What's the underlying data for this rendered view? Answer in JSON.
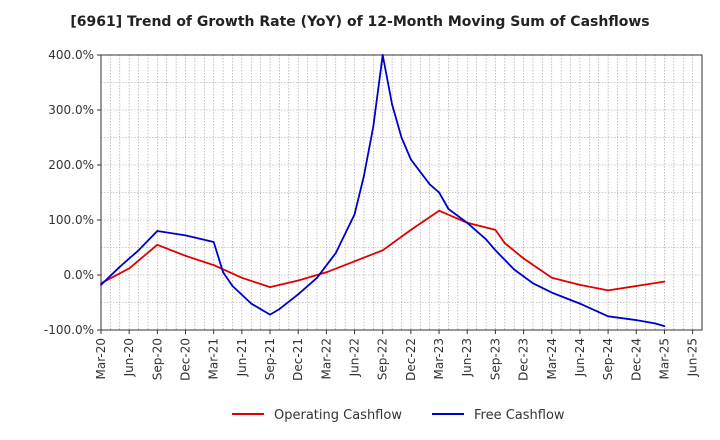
{
  "chart_data": {
    "type": "line",
    "title": "[6961]  Trend of Growth Rate (YoY) of 12-Month Moving Sum of Cashflows",
    "xlabel": "",
    "ylabel": "",
    "ylim": [
      -100,
      400
    ],
    "yticks": [
      -100,
      0,
      100,
      200,
      300,
      400
    ],
    "ytick_labels": [
      "-100.0%",
      "0.0%",
      "100.0%",
      "200.0%",
      "300.0%",
      "400.0%"
    ],
    "x_tick_labels": [
      "Mar-20",
      "Jun-20",
      "Sep-20",
      "Dec-20",
      "Mar-21",
      "Jun-21",
      "Sep-21",
      "Dec-21",
      "Mar-22",
      "Jun-22",
      "Sep-22",
      "Dec-22",
      "Mar-23",
      "Jun-23",
      "Sep-23",
      "Dec-23",
      "Mar-24",
      "Jun-24",
      "Sep-24",
      "Dec-24",
      "Mar-25",
      "Jun-25"
    ],
    "x_count": 64,
    "grid": true,
    "legend_position": "bottom-center",
    "series": [
      {
        "name": "Operating Cashflow",
        "color": "#e00000",
        "points": [
          [
            0,
            -15
          ],
          [
            3,
            12
          ],
          [
            6,
            55
          ],
          [
            9,
            35
          ],
          [
            12,
            18
          ],
          [
            15,
            -5
          ],
          [
            18,
            -22
          ],
          [
            21,
            -10
          ],
          [
            24,
            5
          ],
          [
            27,
            25
          ],
          [
            30,
            45
          ],
          [
            33,
            82
          ],
          [
            36,
            117
          ],
          [
            39,
            95
          ],
          [
            42,
            82
          ],
          [
            43,
            58
          ],
          [
            45,
            30
          ],
          [
            48,
            -5
          ],
          [
            51,
            -18
          ],
          [
            54,
            -28
          ],
          [
            57,
            -20
          ],
          [
            60,
            -12
          ]
        ]
      },
      {
        "name": "Free Cashflow",
        "color": "#0000cc",
        "points": [
          [
            0,
            -18
          ],
          [
            2,
            15
          ],
          [
            4,
            45
          ],
          [
            6,
            80
          ],
          [
            9,
            72
          ],
          [
            12,
            60
          ],
          [
            13,
            5
          ],
          [
            14,
            -20
          ],
          [
            16,
            -52
          ],
          [
            18,
            -72
          ],
          [
            19,
            -62
          ],
          [
            21,
            -35
          ],
          [
            23,
            -5
          ],
          [
            25,
            40
          ],
          [
            27,
            110
          ],
          [
            28,
            180
          ],
          [
            29,
            270
          ],
          [
            30,
            400
          ],
          [
            31,
            310
          ],
          [
            32,
            250
          ],
          [
            33,
            210
          ],
          [
            35,
            165
          ],
          [
            36,
            150
          ],
          [
            37,
            120
          ],
          [
            39,
            95
          ],
          [
            41,
            65
          ],
          [
            42,
            45
          ],
          [
            44,
            10
          ],
          [
            46,
            -15
          ],
          [
            48,
            -32
          ],
          [
            51,
            -52
          ],
          [
            54,
            -75
          ],
          [
            57,
            -82
          ],
          [
            59,
            -88
          ],
          [
            60,
            -93
          ]
        ]
      }
    ]
  }
}
